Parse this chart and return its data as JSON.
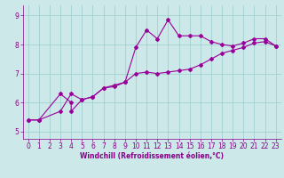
{
  "title": "",
  "xlabel": "Windchill (Refroidissement éolien,°C)",
  "ylabel": "",
  "background_color": "#cce8e8",
  "line_color": "#990099",
  "xlim": [
    -0.5,
    23.5
  ],
  "ylim": [
    4.75,
    9.35
  ],
  "xticks": [
    0,
    1,
    2,
    3,
    4,
    5,
    6,
    7,
    8,
    9,
    10,
    11,
    12,
    13,
    14,
    15,
    16,
    17,
    18,
    19,
    20,
    21,
    22,
    23
  ],
  "yticks": [
    5,
    6,
    7,
    8,
    9
  ],
  "series1_x": [
    0,
    1,
    3,
    4,
    4,
    5,
    6,
    7,
    8,
    9,
    10,
    11,
    12,
    13,
    14,
    15,
    16,
    17,
    18,
    19,
    20,
    21,
    22,
    23
  ],
  "series1_y": [
    5.4,
    5.4,
    6.3,
    6.0,
    5.7,
    6.1,
    6.2,
    6.5,
    6.6,
    6.7,
    7.9,
    8.5,
    8.2,
    8.85,
    8.3,
    8.3,
    8.3,
    8.1,
    8.0,
    7.95,
    8.05,
    8.2,
    8.2,
    7.95
  ],
  "series2_x": [
    0,
    1,
    3,
    4,
    5,
    6,
    7,
    8,
    9,
    10,
    11,
    12,
    13,
    14,
    15,
    16,
    17,
    18,
    19,
    20,
    21,
    22,
    23
  ],
  "series2_y": [
    5.4,
    5.4,
    5.7,
    6.3,
    6.1,
    6.2,
    6.5,
    6.55,
    6.7,
    7.0,
    7.05,
    7.0,
    7.05,
    7.1,
    7.15,
    7.3,
    7.5,
    7.7,
    7.8,
    7.9,
    8.05,
    8.1,
    7.95
  ],
  "grid_color": "#99cccc",
  "marker": "D",
  "marker_size": 2,
  "linewidth": 0.8,
  "xlabel_fontsize": 5.5,
  "tick_fontsize": 5.5,
  "tick_color": "#880088"
}
